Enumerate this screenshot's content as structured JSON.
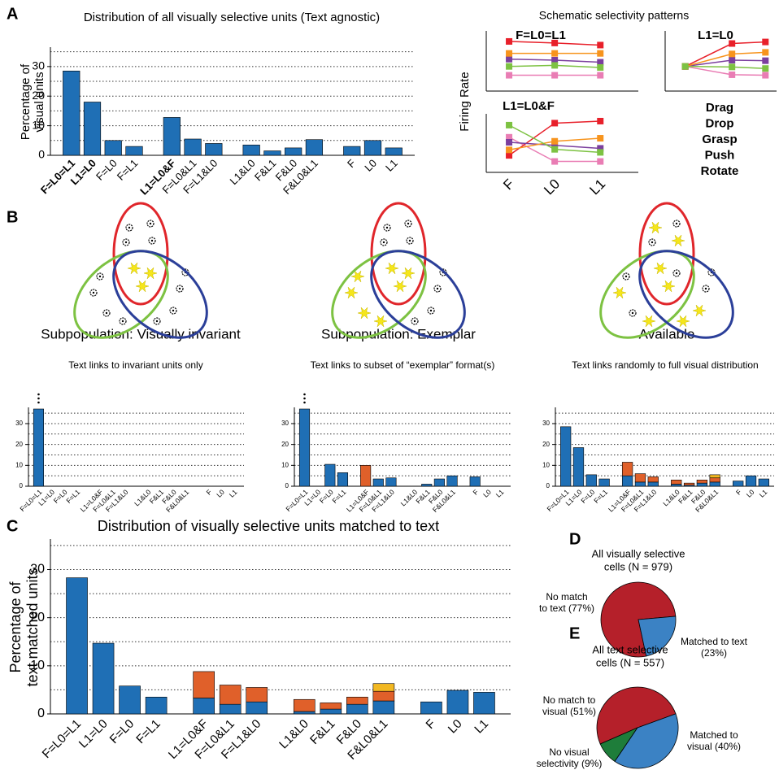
{
  "chart_data": [
    {
      "type": "bar",
      "panel": "A",
      "title": "Distribution of all visually selective units (Text agnostic)",
      "ylabel": [
        "Percentage of",
        "visual units"
      ],
      "categories": [
        "F=L0=L1",
        "L1=L0",
        "F=L0",
        "F=L1",
        "L1=L0&F",
        "F=L0&L1",
        "F=L1&L0",
        "L1&L0",
        "F&L1",
        "F&L0",
        "F&L0&L1",
        "F",
        "L0",
        "L1"
      ],
      "category_colors": [
        "#e8202a",
        "#2ca02c",
        "#000000",
        "#000000",
        "#1e9ad6",
        "#000000",
        "#000000",
        "#000000",
        "#000000",
        "#000000",
        "#000000",
        "#000000",
        "#000000",
        "#000000"
      ],
      "values": [
        28.5,
        18,
        5,
        3,
        12.8,
        5.5,
        4,
        3.5,
        1.5,
        2.5,
        5.3,
        3,
        5,
        2.5
      ],
      "color": "#1f6fb5",
      "ylim": [
        0,
        36
      ],
      "yticks": [
        0,
        10,
        20,
        30
      ],
      "grid": [
        5,
        10,
        15,
        20,
        25,
        30,
        35
      ]
    },
    {
      "type": "line",
      "title": "Schematic selectivity patterns",
      "ylabel": "Firing Rate",
      "categories": [
        "F",
        "L0",
        "L1"
      ],
      "ylim": [
        0,
        10
      ],
      "series": [
        {
          "name": "Drag",
          "color": "#e97db4"
        },
        {
          "name": "Drop",
          "color": "#e8202a"
        },
        {
          "name": "Grasp",
          "color": "#7b3f9e"
        },
        {
          "name": "Push",
          "color": "#f7941d"
        },
        {
          "name": "Rotate",
          "color": "#7dc242"
        }
      ],
      "subplots": [
        {
          "title": "F=L0=L1",
          "title_color": "#e8202a",
          "values": [
            [
              2.1,
              2.1,
              2.1
            ],
            [
              8.6,
              8.3,
              7.9
            ],
            [
              5.2,
              5.0,
              4.6
            ],
            [
              6.3,
              6.3,
              6.3
            ],
            [
              3.8,
              4.0,
              3.6
            ]
          ]
        },
        {
          "title": "L1=L0",
          "title_color": "#2ca02c",
          "values": [
            [
              3.8,
              2.2,
              2.1
            ],
            [
              3.8,
              8.2,
              8.5
            ],
            [
              3.8,
              5.0,
              4.9
            ],
            [
              3.8,
              6.2,
              6.5
            ],
            [
              3.8,
              3.7,
              3.4
            ]
          ]
        },
        {
          "title": "L1=L0&F",
          "title_color": "#1e9ad6",
          "values": [
            [
              6.0,
              1.2,
              1.2
            ],
            [
              2.4,
              8.8,
              9.2
            ],
            [
              5.0,
              4.4,
              3.8
            ],
            [
              3.5,
              5.2,
              5.8
            ],
            [
              8.4,
              3.6,
              3.0
            ]
          ]
        }
      ]
    },
    {
      "type": "stacked_bar",
      "title": "Text links to invariant units only",
      "categories": [
        "F=L0=L1",
        "L1=L0",
        "F=L0",
        "F=L1",
        "L1=L0&F",
        "F=L0&L1",
        "F=L1&L0",
        "L1&L0",
        "F&L1",
        "F&L0",
        "F&L0&L1",
        "F",
        "L0",
        "L1"
      ],
      "series": [
        {
          "color": "#1f6fb5",
          "values": [
            37,
            null,
            null,
            null,
            null,
            null,
            null,
            null,
            null,
            null,
            null,
            null,
            null,
            null
          ]
        }
      ],
      "ylim": [
        0,
        37
      ],
      "yticks": [
        0,
        10,
        20,
        30
      ],
      "grid": [
        5,
        10,
        15,
        20,
        25,
        30,
        35
      ]
    },
    {
      "type": "stacked_bar",
      "title": "Text links to subset of “exemplar” format(s)",
      "categories": [
        "F=L0=L1",
        "L1=L0",
        "F=L0",
        "F=L1",
        "L1=L0&F",
        "F=L0&L1",
        "F=L1&L0",
        "L1&L0",
        "F&L1",
        "F&L0",
        "F&L0&L1",
        "F",
        "L0",
        "L1"
      ],
      "series": [
        {
          "color": "#1f6fb5",
          "values": [
            37,
            null,
            10.5,
            6.5,
            null,
            3.5,
            4,
            null,
            1,
            3.5,
            5,
            4.5,
            null,
            null
          ]
        },
        {
          "color": "#e0602a",
          "values": [
            null,
            null,
            null,
            null,
            10,
            null,
            null,
            null,
            null,
            null,
            null,
            null,
            null,
            null
          ]
        }
      ],
      "ylim": [
        0,
        37
      ],
      "yticks": [
        0,
        10,
        20,
        30
      ],
      "grid": [
        5,
        10,
        15,
        20,
        25,
        30,
        35
      ]
    },
    {
      "type": "stacked_bar",
      "title": "Text links randomly to full visual distribution",
      "categories": [
        "F=L0=L1",
        "L1=L0",
        "F=L0",
        "F=L1",
        "L1=L0&F",
        "F=L0&L1",
        "F=L1&L0",
        "L1&L0",
        "F&L1",
        "F&L0",
        "F&L0&L1",
        "F",
        "L0",
        "L1"
      ],
      "series": [
        {
          "color": "#1f6fb5",
          "values": [
            28.5,
            18.5,
            5.5,
            3.5,
            5,
            2,
            2,
            1,
            0.5,
            1.5,
            2,
            2.5,
            5,
            3.5
          ]
        },
        {
          "color": "#e0602a",
          "values": [
            null,
            null,
            null,
            null,
            6.5,
            4,
            2.5,
            2,
            1,
            1.5,
            2,
            null,
            null,
            null
          ]
        },
        {
          "color": "#f2b822",
          "values": [
            null,
            null,
            null,
            null,
            null,
            null,
            null,
            null,
            null,
            null,
            1.5,
            null,
            null,
            null
          ]
        }
      ],
      "ylim": [
        0,
        37
      ],
      "yticks": [
        0,
        10,
        20,
        30
      ],
      "grid": [
        5,
        10,
        15,
        20,
        25,
        30,
        35
      ]
    },
    {
      "type": "stacked_bar",
      "panel": "C",
      "title": "Distribution of visually selective units matched to text",
      "ylabel": [
        "Percentage of",
        "text matched units"
      ],
      "categories": [
        "F=L0=L1",
        "L1=L0",
        "F=L0",
        "F=L1",
        "L1=L0&F",
        "F=L0&L1",
        "F=L1&L0",
        "L1&L0",
        "F&L1",
        "F&L0",
        "F&L0&L1",
        "F",
        "L0",
        "L1"
      ],
      "series": [
        {
          "color": "#1f6fb5",
          "values": [
            28.3,
            14.7,
            5.8,
            3.5,
            3.3,
            2,
            2.5,
            0.5,
            1,
            2,
            2.7,
            2.5,
            4.9,
            4.5
          ]
        },
        {
          "color": "#e0602a",
          "values": [
            null,
            null,
            null,
            null,
            5.5,
            4,
            3,
            2.5,
            1.3,
            1.5,
            2,
            null,
            null,
            null
          ]
        },
        {
          "color": "#f2b822",
          "values": [
            null,
            null,
            null,
            null,
            null,
            null,
            null,
            null,
            null,
            null,
            1.6,
            null,
            null,
            null
          ]
        }
      ],
      "ylim": [
        0,
        36
      ],
      "yticks": [
        0,
        10,
        20,
        30
      ],
      "grid": [
        5,
        10,
        15,
        20,
        25,
        30,
        35
      ]
    },
    {
      "type": "pie",
      "panel": "D",
      "title": [
        "All visually selective",
        "cells (N = 979)"
      ],
      "values": [
        77,
        23
      ],
      "colors": [
        "#b5202a",
        "#3b82c4"
      ],
      "value_labels": [
        [
          "No match",
          "to text (77%)"
        ],
        [
          "Matched to text",
          "(23%)"
        ]
      ]
    },
    {
      "type": "pie",
      "panel": "E",
      "title": [
        "All text selective",
        "cells (N = 557)"
      ],
      "values": [
        51,
        9,
        40
      ],
      "colors": [
        "#b5202a",
        "#1e7d3a",
        "#3b82c4"
      ],
      "value_labels": [
        [
          "No match to",
          "visual (51%)"
        ],
        [
          "No visual",
          "selectivity (9%)"
        ],
        [
          "Matched to",
          "visual (40%)"
        ]
      ]
    }
  ],
  "venn": {
    "panel": "B",
    "captions": [
      "Subpopulation: Visually invariant",
      "Subpopulation: Exemplar",
      "Available"
    ]
  }
}
